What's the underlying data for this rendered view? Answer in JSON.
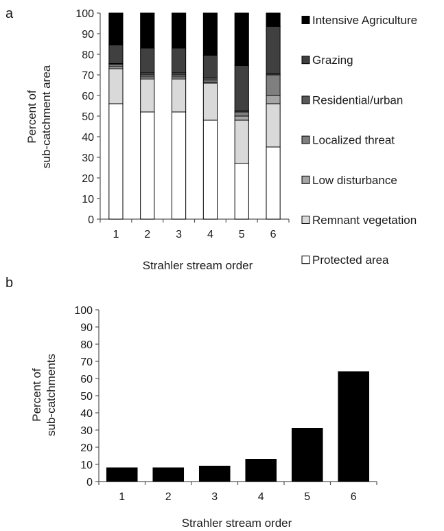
{
  "chart_data": [
    {
      "panel": "a",
      "type": "bar",
      "stacked": true,
      "categories": [
        "1",
        "2",
        "3",
        "4",
        "5",
        "6"
      ],
      "xlabel": "Strahler stream order",
      "ylabel": [
        "Percent of",
        "sub-catchment area"
      ],
      "ylim": [
        0,
        100
      ],
      "yticks": [
        0,
        10,
        20,
        30,
        40,
        50,
        60,
        70,
        80,
        90,
        100
      ],
      "grid": false,
      "legend_position": "right",
      "series": [
        {
          "name": "Protected area",
          "color": "#ffffff",
          "values": [
            56,
            52,
            52,
            48,
            27,
            35
          ]
        },
        {
          "name": "Remnant vegetation",
          "color": "#d9d9d9",
          "values": [
            17,
            16,
            16,
            18,
            21,
            21
          ]
        },
        {
          "name": "Low disturbance",
          "color": "#a6a6a6",
          "values": [
            1,
            1,
            1,
            0.5,
            2,
            4
          ]
        },
        {
          "name": "Localized threat",
          "color": "#7f7f7f",
          "values": [
            1,
            1,
            1,
            1,
            2,
            10
          ]
        },
        {
          "name": "Residential/urban",
          "color": "#595959",
          "values": [
            0.5,
            1,
            1,
            1,
            0.5,
            0.5
          ]
        },
        {
          "name": "Grazing",
          "color": "#404040",
          "values": [
            9,
            12,
            12,
            11,
            22,
            23
          ]
        },
        {
          "name": "Intensive Agriculture",
          "color": "#000000",
          "values": [
            15.5,
            17,
            17,
            20.5,
            25.5,
            6.5
          ]
        }
      ]
    },
    {
      "panel": "b",
      "type": "bar",
      "categories": [
        "1",
        "2",
        "3",
        "4",
        "5",
        "6"
      ],
      "values": [
        8,
        8,
        9,
        13,
        31,
        64
      ],
      "color": "#000000",
      "xlabel": "Strahler stream order",
      "ylabel": [
        "Percent of",
        "sub-catchments"
      ],
      "ylim": [
        0,
        100
      ],
      "yticks": [
        0,
        10,
        20,
        30,
        40,
        50,
        60,
        70,
        80,
        90,
        100
      ],
      "grid": false
    }
  ]
}
